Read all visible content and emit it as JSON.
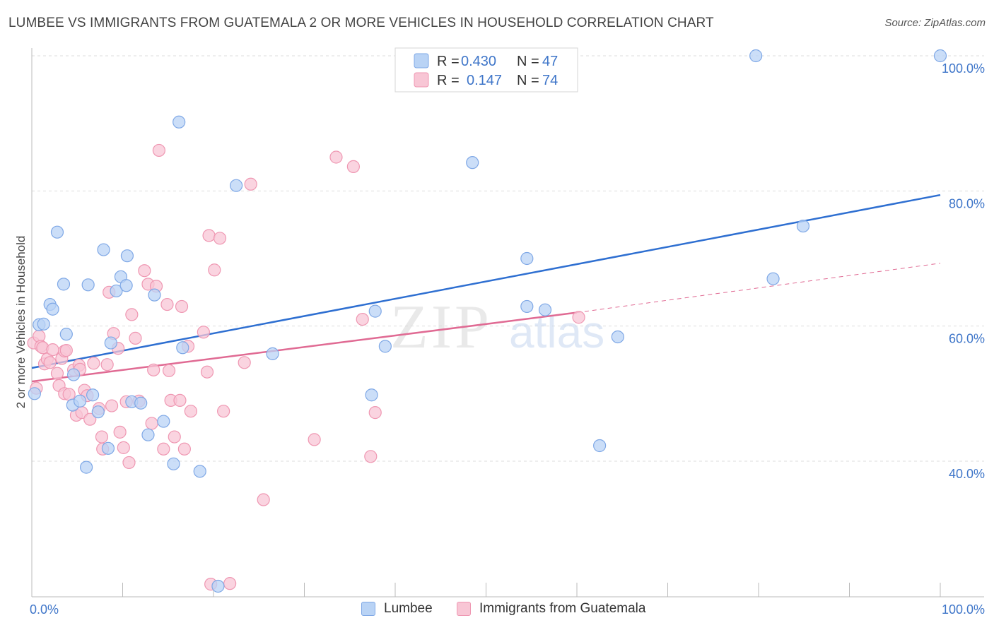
{
  "title": "LUMBEE VS IMMIGRANTS FROM GUATEMALA 2 OR MORE VEHICLES IN HOUSEHOLD CORRELATION CHART",
  "source": "Source: ZipAtlas.com",
  "watermark": {
    "zip": "ZIP",
    "atlas": "atlas"
  },
  "colors": {
    "lumbee_fill": "#b9d3f5",
    "lumbee_stroke": "#7fa8e6",
    "lumbee_line": "#2e6fd1",
    "guatemala_fill": "#f8c6d5",
    "guatemala_stroke": "#ef97b2",
    "guatemala_line": "#e06a93",
    "axis_label": "#3f76c9",
    "grid": "#dddddd"
  },
  "legend": {
    "rows": [
      {
        "r_label": "R = ",
        "r_value": "0.430",
        "n_label": "N = ",
        "n_value": "47"
      },
      {
        "r_label": "R = ",
        "r_value": "0.147",
        "n_label": "N = ",
        "n_value": "74"
      }
    ]
  },
  "chart_data": {
    "type": "scatter",
    "title": "LUMBEE VS IMMIGRANTS FROM GUATEMALA 2 OR MORE VEHICLES IN HOUSEHOLD CORRELATION CHART",
    "xlabel": "",
    "ylabel": "2 or more Vehicles in Household",
    "xlim": [
      0,
      100
    ],
    "ylim": [
      20,
      101
    ],
    "x_tick_labels": [
      "0.0%",
      "100.0%"
    ],
    "y_ticks": [
      40,
      60,
      80,
      100
    ],
    "y_tick_labels": [
      "40.0%",
      "60.0%",
      "80.0%",
      "100.0%"
    ],
    "grid": true,
    "legend_position": "top-center",
    "series": [
      {
        "name": "Lumbee",
        "r": 0.43,
        "n": 47,
        "trend": {
          "x": [
            0,
            100
          ],
          "y": [
            53.8,
            79.4
          ]
        },
        "points": [
          [
            0.3,
            50.0
          ],
          [
            0.8,
            60.2
          ],
          [
            1.3,
            60.3
          ],
          [
            2.0,
            63.2
          ],
          [
            2.3,
            62.5
          ],
          [
            2.8,
            73.9
          ],
          [
            3.5,
            66.2
          ],
          [
            3.8,
            58.8
          ],
          [
            4.6,
            52.8
          ],
          [
            4.5,
            48.3
          ],
          [
            5.3,
            48.9
          ],
          [
            6.0,
            39.1
          ],
          [
            6.2,
            66.1
          ],
          [
            6.7,
            49.8
          ],
          [
            7.3,
            47.3
          ],
          [
            7.9,
            71.3
          ],
          [
            8.4,
            41.9
          ],
          [
            8.7,
            57.5
          ],
          [
            9.3,
            65.2
          ],
          [
            9.8,
            67.3
          ],
          [
            10.5,
            70.4
          ],
          [
            10.4,
            66.0
          ],
          [
            11.0,
            48.8
          ],
          [
            12.0,
            48.6
          ],
          [
            12.8,
            43.9
          ],
          [
            13.5,
            64.6
          ],
          [
            14.5,
            45.9
          ],
          [
            15.6,
            39.6
          ],
          [
            16.2,
            90.2
          ],
          [
            16.6,
            56.8
          ],
          [
            18.5,
            38.5
          ],
          [
            20.5,
            21.5
          ],
          [
            22.5,
            80.8
          ],
          [
            26.5,
            55.9
          ],
          [
            37.8,
            62.2
          ],
          [
            37.4,
            49.8
          ],
          [
            38.9,
            57.0
          ],
          [
            48.5,
            84.2
          ],
          [
            54.5,
            62.9
          ],
          [
            54.5,
            70.0
          ],
          [
            56.5,
            62.4
          ],
          [
            62.5,
            42.3
          ],
          [
            64.5,
            58.4
          ],
          [
            79.7,
            100.0
          ],
          [
            81.6,
            67.0
          ],
          [
            84.9,
            74.8
          ],
          [
            100.0,
            100.0
          ]
        ]
      },
      {
        "name": "Immigrants from Guatemala",
        "r": 0.147,
        "n": 74,
        "trend": {
          "x": [
            0,
            60
          ],
          "y": [
            51.8,
            62.0
          ]
        },
        "trend_dashed": {
          "x": [
            60,
            100
          ],
          "y": [
            62.0,
            69.3
          ]
        },
        "points": [
          [
            0.2,
            57.5
          ],
          [
            0.5,
            50.8
          ],
          [
            0.8,
            58.5
          ],
          [
            1.0,
            57.0
          ],
          [
            1.2,
            56.8
          ],
          [
            1.4,
            54.4
          ],
          [
            1.7,
            55.1
          ],
          [
            2.0,
            54.6
          ],
          [
            2.3,
            56.5
          ],
          [
            2.8,
            53.0
          ],
          [
            3.0,
            51.2
          ],
          [
            3.3,
            55.2
          ],
          [
            3.6,
            50.0
          ],
          [
            3.6,
            56.3
          ],
          [
            3.8,
            56.4
          ],
          [
            4.1,
            49.9
          ],
          [
            4.6,
            53.5
          ],
          [
            4.9,
            46.8
          ],
          [
            5.2,
            54.2
          ],
          [
            5.3,
            53.6
          ],
          [
            5.5,
            47.2
          ],
          [
            5.8,
            50.5
          ],
          [
            6.1,
            49.7
          ],
          [
            6.4,
            46.2
          ],
          [
            6.8,
            54.5
          ],
          [
            7.4,
            47.8
          ],
          [
            7.7,
            43.6
          ],
          [
            7.8,
            41.8
          ],
          [
            8.3,
            54.3
          ],
          [
            8.5,
            65.0
          ],
          [
            8.8,
            48.2
          ],
          [
            9.0,
            58.9
          ],
          [
            9.5,
            56.7
          ],
          [
            9.7,
            44.3
          ],
          [
            10.1,
            42.0
          ],
          [
            10.4,
            48.8
          ],
          [
            10.7,
            39.8
          ],
          [
            11.0,
            61.7
          ],
          [
            11.4,
            58.2
          ],
          [
            11.8,
            48.9
          ],
          [
            12.4,
            68.2
          ],
          [
            12.8,
            66.2
          ],
          [
            13.2,
            45.6
          ],
          [
            13.4,
            53.5
          ],
          [
            13.7,
            65.9
          ],
          [
            14.5,
            41.8
          ],
          [
            14.9,
            63.2
          ],
          [
            15.1,
            53.4
          ],
          [
            15.3,
            49.0
          ],
          [
            15.7,
            43.6
          ],
          [
            16.3,
            49.0
          ],
          [
            16.5,
            62.9
          ],
          [
            16.8,
            41.8
          ],
          [
            17.2,
            57.0
          ],
          [
            17.5,
            47.4
          ],
          [
            18.9,
            59.1
          ],
          [
            19.3,
            53.2
          ],
          [
            19.5,
            73.4
          ],
          [
            19.7,
            21.8
          ],
          [
            20.1,
            68.3
          ],
          [
            20.7,
            73.0
          ],
          [
            21.1,
            47.4
          ],
          [
            21.8,
            21.9
          ],
          [
            23.4,
            54.6
          ],
          [
            24.1,
            81.0
          ],
          [
            25.5,
            34.3
          ],
          [
            31.1,
            43.2
          ],
          [
            33.5,
            85.0
          ],
          [
            35.4,
            83.6
          ],
          [
            36.4,
            61.0
          ],
          [
            37.3,
            40.7
          ],
          [
            37.8,
            47.2
          ],
          [
            60.2,
            61.3
          ],
          [
            14.0,
            86.0
          ]
        ]
      }
    ]
  }
}
